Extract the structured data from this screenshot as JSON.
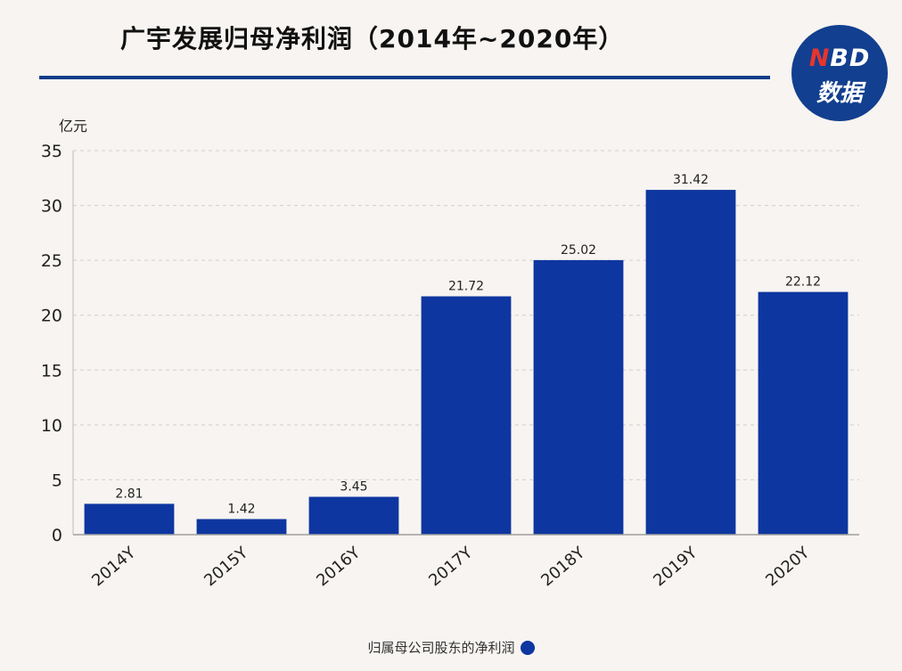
{
  "title": "广宇发展归母净利润（2014年~2020年）",
  "badge": {
    "line1_n": "N",
    "line1_rest": "BD",
    "line2": "数据"
  },
  "colors": {
    "bar": "#0e36a0",
    "rule": "#0d3d8a",
    "badge": "#123f8f",
    "badge_accent": "#e8352c"
  },
  "chart_data": {
    "type": "bar",
    "unit_label": "亿元",
    "categories": [
      "2014Y",
      "2015Y",
      "2016Y",
      "2017Y",
      "2018Y",
      "2019Y",
      "2020Y"
    ],
    "series": [
      {
        "name": "归属母公司股东的净利润",
        "values": [
          2.81,
          1.42,
          3.45,
          21.72,
          25.02,
          31.42,
          22.12
        ]
      }
    ],
    "value_labels": [
      "2.81",
      "1.42",
      "3.45",
      "21.72",
      "25.02",
      "31.42",
      "22.12"
    ],
    "ylim": [
      0,
      35
    ],
    "yticks": [
      0,
      5,
      10,
      15,
      20,
      25,
      30,
      35
    ],
    "grid": true,
    "legend_position": "bottom-center"
  }
}
